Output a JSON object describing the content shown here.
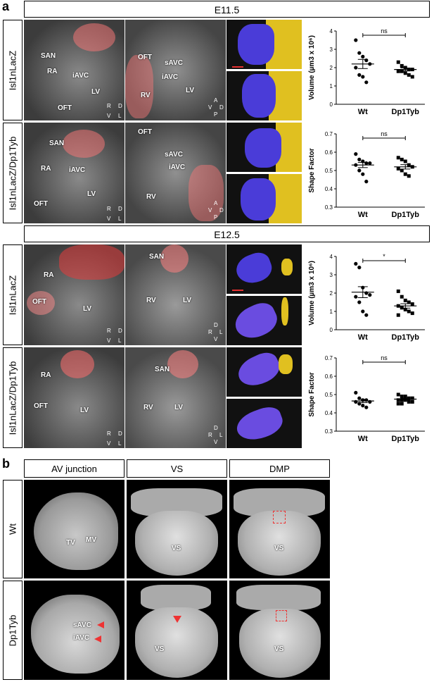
{
  "panel_a": {
    "letter": "a",
    "stage_top": "E11.5",
    "stage_bottom": "E12.5",
    "row_labels": [
      "Isl1nLacZ",
      "Isl1nLacZ/Dp1Tyb",
      "Isl1nLacZ",
      "Isl1nLacZ/Dp1Tyb"
    ],
    "labels": {
      "r1a": [
        "SAN",
        "RA",
        "iAVC",
        "LV",
        "OFT"
      ],
      "r1b": [
        "OFT",
        "sAVC",
        "iAVC",
        "LV",
        "RV"
      ],
      "r2a": [
        "SAN",
        "RA",
        "iAVC",
        "LV",
        "OFT"
      ],
      "r2b": [
        "OFT",
        "sAVC",
        "iAVC",
        "RV"
      ],
      "r3a": [
        "RA",
        "OFT",
        "LV"
      ],
      "r3b": [
        "SAN",
        "RV",
        "LV"
      ],
      "r4a": [
        "RA",
        "OFT",
        "LV"
      ],
      "r4b": [
        "SAN",
        "RV",
        "LV"
      ]
    },
    "axis_marks": {
      "rdvl": [
        "R",
        "D",
        "V",
        "L"
      ],
      "avdp": [
        "A",
        "V",
        "D",
        "P"
      ],
      "rldv": [
        "D",
        "R",
        "L",
        "V"
      ]
    }
  },
  "panel_b": {
    "letter": "b",
    "columns": [
      "AV junction",
      "VS",
      "DMP"
    ],
    "rows": [
      "Wt",
      "Dp1Tyb"
    ],
    "labels": {
      "wt_av": [
        "TV",
        "MV"
      ],
      "wt_vs": [
        "VS"
      ],
      "wt_dmp": [
        "VS"
      ],
      "dp_av": [
        "sAVC",
        "iAVC"
      ],
      "dp_vs": [
        "VS"
      ],
      "dp_dmp": [
        "VS"
      ]
    }
  },
  "chart_data": [
    {
      "type": "scatter",
      "ylabel": "Volume (µm3 x 10⁶)",
      "categories": [
        "Wt",
        "Dp1Tyb"
      ],
      "ylim": [
        0,
        4
      ],
      "yticks": [
        "0",
        "1",
        "2",
        "3",
        "4"
      ],
      "significance": "ns",
      "series": [
        {
          "values": [
            3.5,
            2.8,
            2.6,
            2.4,
            2.2,
            2.0,
            1.6,
            1.5,
            1.2
          ],
          "mean": 2.2,
          "sem": 0.25
        },
        {
          "values": [
            2.3,
            2.1,
            2.0,
            1.9,
            1.9,
            1.8,
            1.8,
            1.7,
            1.6,
            1.5
          ],
          "mean": 1.9,
          "sem": 0.08
        }
      ]
    },
    {
      "type": "scatter",
      "ylabel": "Shape Factor",
      "categories": [
        "Wt",
        "Dp1Tyb"
      ],
      "ylim": [
        0.3,
        0.7
      ],
      "yticks": [
        "0.3",
        "0.4",
        "0.5",
        "0.6",
        "0.7"
      ],
      "significance": "ns",
      "series": [
        {
          "values": [
            0.59,
            0.56,
            0.55,
            0.54,
            0.54,
            0.53,
            0.5,
            0.48,
            0.44
          ],
          "mean": 0.53,
          "sem": 0.014
        },
        {
          "values": [
            0.57,
            0.56,
            0.55,
            0.53,
            0.52,
            0.51,
            0.5,
            0.48,
            0.47
          ],
          "mean": 0.52,
          "sem": 0.012
        }
      ]
    },
    {
      "type": "scatter",
      "ylabel": "Volume (µm3 x 10⁶)",
      "categories": [
        "Wt",
        "Dp1Tyb"
      ],
      "ylim": [
        0,
        4
      ],
      "yticks": [
        "0",
        "1",
        "2",
        "3",
        "4"
      ],
      "significance": "*",
      "series": [
        {
          "values": [
            3.6,
            3.4,
            2.3,
            2.0,
            1.9,
            1.8,
            1.5,
            1.0,
            0.8
          ],
          "mean": 2.05,
          "sem": 0.3
        },
        {
          "values": [
            2.1,
            1.8,
            1.6,
            1.5,
            1.4,
            1.3,
            1.2,
            1.1,
            1.0,
            0.9,
            0.8
          ],
          "mean": 1.3,
          "sem": 0.12
        }
      ]
    },
    {
      "type": "scatter",
      "ylabel": "Shape Factor",
      "categories": [
        "Wt",
        "Dp1Tyb"
      ],
      "ylim": [
        0.3,
        0.7
      ],
      "yticks": [
        "0.3",
        "0.4",
        "0.5",
        "0.6",
        "0.7"
      ],
      "significance": "ns",
      "series": [
        {
          "values": [
            0.51,
            0.48,
            0.47,
            0.47,
            0.46,
            0.46,
            0.45,
            0.44,
            0.43
          ],
          "mean": 0.465,
          "sem": 0.009
        },
        {
          "values": [
            0.5,
            0.49,
            0.49,
            0.48,
            0.48,
            0.47,
            0.47,
            0.47,
            0.46,
            0.46,
            0.45,
            0.45
          ],
          "mean": 0.475,
          "sem": 0.005
        }
      ]
    }
  ]
}
